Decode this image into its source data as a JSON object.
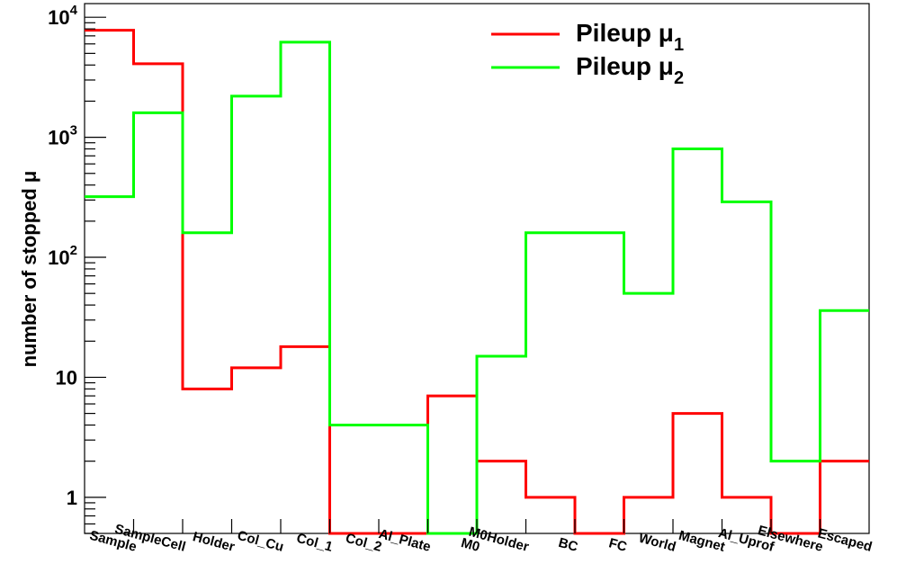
{
  "chart_data": {
    "type": "line",
    "step": true,
    "ylabel": "number of stopped μ",
    "yscale": "log",
    "ylim": [
      0.5,
      13000
    ],
    "yticks": [
      {
        "value": 1,
        "label": "1"
      },
      {
        "value": 10,
        "label": "10"
      },
      {
        "value": 100,
        "base": "10",
        "exp": "2"
      },
      {
        "value": 1000,
        "base": "10",
        "exp": "3"
      },
      {
        "value": 10000,
        "base": "10",
        "exp": "4"
      }
    ],
    "categories": [
      "Sample",
      "SampleCell",
      "Holder",
      "Col_Cu",
      "Col_1",
      "Col_2",
      "Al_Plate",
      "M0",
      "M0Holder",
      "BC",
      "FC",
      "World",
      "Magnet",
      "Al_Uprof",
      "Elsewhere",
      "Escaped"
    ],
    "series": [
      {
        "name": "Pileup μ",
        "name_sub": "1",
        "color": "#ff0000",
        "values": [
          7800,
          4100,
          8,
          12,
          18,
          0.5,
          0.5,
          7,
          2,
          1,
          0.5,
          1,
          5,
          1,
          0.5,
          2
        ]
      },
      {
        "name": "Pileup μ",
        "name_sub": "2",
        "color": "#00ff00",
        "values": [
          320,
          1600,
          160,
          2200,
          6200,
          4,
          4,
          0.5,
          15,
          160,
          160,
          50,
          800,
          290,
          2,
          36
        ]
      }
    ],
    "legend_position": "top-right",
    "grid": false
  }
}
